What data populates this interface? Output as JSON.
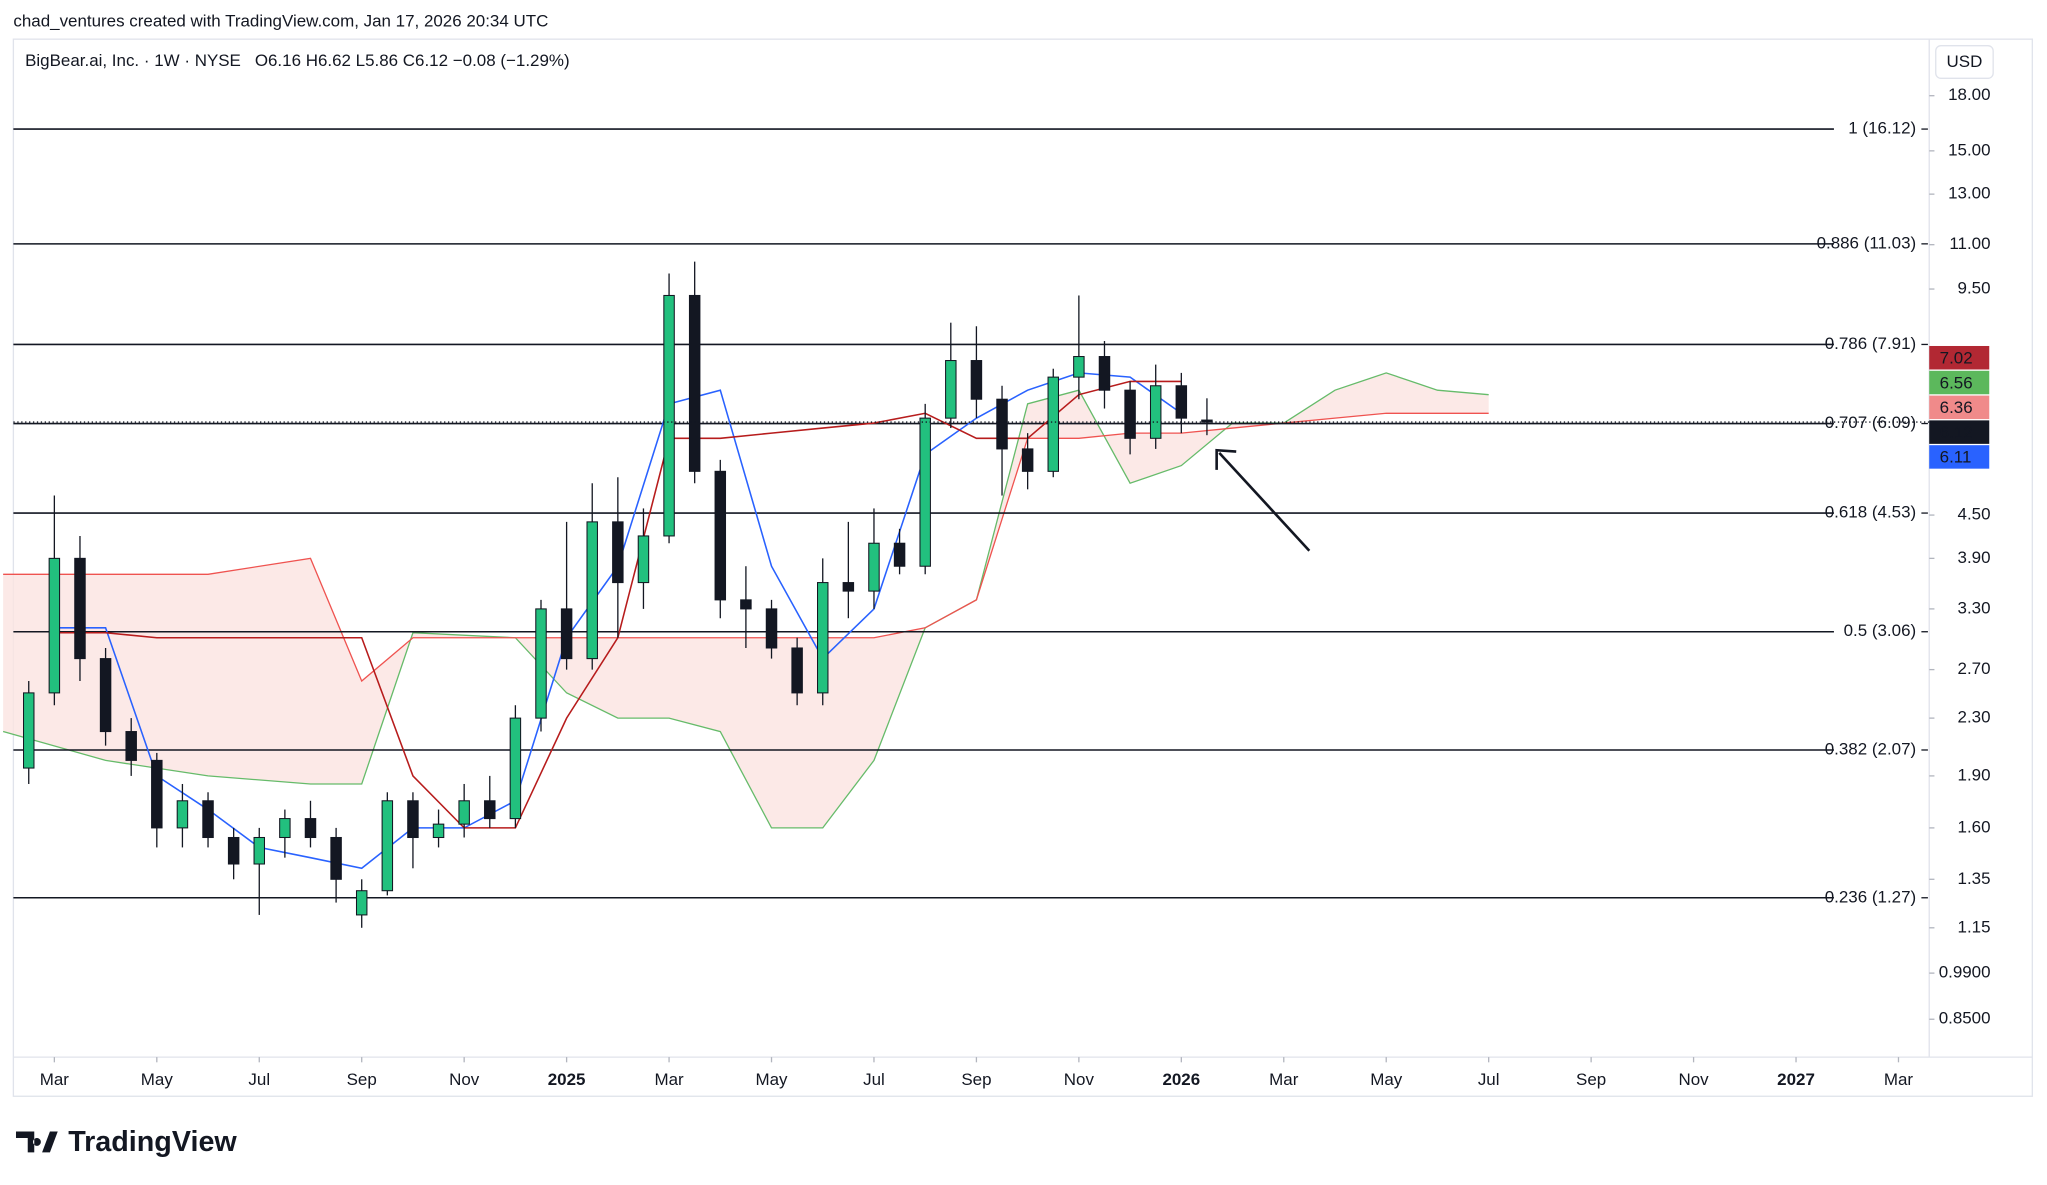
{
  "header": {
    "attribution": "chad_ventures created with TradingView.com, Jan 17, 2026 20:34 UTC",
    "brand": "TradingView"
  },
  "chart_data": {
    "type": "candlestick",
    "title": "BigBear.ai, Inc. · 1W · NYSE",
    "ohlc_text": "O6.16  H6.62  L5.86  C6.12  −0.08 (−1.29%)",
    "currency": "USD",
    "log_scale": true,
    "up_color": "#22c07e",
    "down_color": "#131722",
    "x": [
      1.5,
      2,
      2.5,
      3,
      3.5,
      4,
      4.5,
      5,
      5.5,
      6,
      6.5,
      7,
      7.5,
      8,
      8.5,
      9,
      9.5,
      10,
      10.5,
      11,
      11.5,
      12,
      12.5,
      13,
      13.5,
      14,
      14.5,
      15,
      15.5,
      16,
      16.5,
      17,
      17.5,
      18,
      18.5,
      19,
      19.5,
      20,
      20.5,
      21,
      21.5,
      22,
      22.5,
      23,
      23.5,
      24,
      24.5
    ],
    "open": [
      1.95,
      2.5,
      3.9,
      2.8,
      2.2,
      2.0,
      1.6,
      1.75,
      1.55,
      1.42,
      1.55,
      1.65,
      1.55,
      1.2,
      1.3,
      1.75,
      1.55,
      1.62,
      1.75,
      1.65,
      2.3,
      3.3,
      2.8,
      4.4,
      3.6,
      4.2,
      9.3,
      5.2,
      3.4,
      3.3,
      2.9,
      2.5,
      3.6,
      3.5,
      4.1,
      3.8,
      6.2,
      7.5,
      6.6,
      5.6,
      5.2,
      7.1,
      7.6,
      6.8,
      5.8,
      6.9,
      6.16
    ],
    "high": [
      2.6,
      4.8,
      4.2,
      2.9,
      2.3,
      2.05,
      1.85,
      1.8,
      1.6,
      1.6,
      1.7,
      1.75,
      1.6,
      1.35,
      1.8,
      1.8,
      1.7,
      1.85,
      1.9,
      2.4,
      3.4,
      4.4,
      5.0,
      5.1,
      4.6,
      10.0,
      10.4,
      5.4,
      3.8,
      3.4,
      3.0,
      3.9,
      4.4,
      4.6,
      4.3,
      6.5,
      8.5,
      8.4,
      6.9,
      5.9,
      7.3,
      9.3,
      8.0,
      7.0,
      7.4,
      7.2,
      6.62
    ],
    "low": [
      1.85,
      2.4,
      2.6,
      2.1,
      1.9,
      1.5,
      1.5,
      1.5,
      1.35,
      1.2,
      1.45,
      1.5,
      1.25,
      1.15,
      1.28,
      1.4,
      1.5,
      1.55,
      1.6,
      1.6,
      2.2,
      2.7,
      2.7,
      3.0,
      3.3,
      4.1,
      5.0,
      3.2,
      2.9,
      2.8,
      2.4,
      2.4,
      3.2,
      3.3,
      3.7,
      3.7,
      6.0,
      6.2,
      4.8,
      4.9,
      5.1,
      6.6,
      6.4,
      5.5,
      5.6,
      5.9,
      5.86
    ],
    "close": [
      2.5,
      3.9,
      2.8,
      2.2,
      2.0,
      1.6,
      1.75,
      1.55,
      1.42,
      1.55,
      1.65,
      1.55,
      1.35,
      1.3,
      1.75,
      1.55,
      1.62,
      1.75,
      1.65,
      2.3,
      3.3,
      2.8,
      4.4,
      3.6,
      4.2,
      9.3,
      5.2,
      3.4,
      3.3,
      2.9,
      2.5,
      3.6,
      3.5,
      4.1,
      3.8,
      6.2,
      7.5,
      6.6,
      5.6,
      5.2,
      7.1,
      7.6,
      6.8,
      5.8,
      6.9,
      6.2,
      6.12
    ],
    "lines": [
      {
        "color": "#2962ff",
        "x": [
          2,
          3,
          4,
          5,
          6,
          7,
          8,
          9,
          10,
          11,
          12,
          13,
          14,
          15,
          16,
          17,
          18,
          19,
          20,
          21,
          22,
          23,
          24
        ],
        "values": [
          3.1,
          3.1,
          1.9,
          1.7,
          1.5,
          1.45,
          1.4,
          1.6,
          1.6,
          1.75,
          3.0,
          3.8,
          6.5,
          6.8,
          3.8,
          2.8,
          3.3,
          5.5,
          6.2,
          6.8,
          7.2,
          7.1,
          6.3
        ]
      },
      {
        "color": "#b71c1c",
        "x": [
          2,
          3,
          4,
          5,
          6,
          7,
          8,
          9,
          10,
          11,
          12,
          13,
          14,
          15,
          16,
          17,
          18,
          19,
          20,
          21,
          22,
          23,
          24
        ],
        "values": [
          3.05,
          3.05,
          3.0,
          3.0,
          3.0,
          3.0,
          3.0,
          1.9,
          1.6,
          1.6,
          2.3,
          3.0,
          5.8,
          5.8,
          5.9,
          6.0,
          6.1,
          6.3,
          5.8,
          5.8,
          6.7,
          7.0,
          7.0
        ]
      }
    ],
    "cloud": {
      "span_a_color": "#66bb6a",
      "span_b_color": "#ef5350",
      "fill": "#fbe3e1",
      "x": [
        1,
        3,
        5,
        7,
        8,
        9,
        11,
        12,
        13,
        14,
        15,
        16,
        17,
        18,
        19,
        20,
        21,
        22,
        23,
        24,
        25,
        26,
        27,
        28,
        29,
        30
      ],
      "span_a": [
        2.2,
        2.0,
        1.9,
        1.85,
        1.85,
        3.05,
        3.0,
        2.5,
        2.3,
        2.3,
        2.2,
        1.6,
        1.6,
        2.0,
        3.1,
        3.4,
        6.5,
        6.8,
        5.0,
        5.3,
        6.1,
        6.1,
        6.8,
        7.2,
        6.8,
        6.7
      ],
      "span_b": [
        3.7,
        3.7,
        3.7,
        3.9,
        2.6,
        3.0,
        3.0,
        3.0,
        3.0,
        3.0,
        3.0,
        3.0,
        3.0,
        3.0,
        3.1,
        3.4,
        5.8,
        5.8,
        5.9,
        5.9,
        6.0,
        6.1,
        6.2,
        6.3,
        6.3,
        6.3
      ]
    },
    "levels": [
      {
        "value": 16.12,
        "label": "1 (16.12)"
      },
      {
        "value": 11.03,
        "label": "0.886 (11.03)"
      },
      {
        "value": 7.91,
        "label": "0.786 (7.91)"
      },
      {
        "value": 6.09,
        "label": "0.707 (6.09)"
      },
      {
        "value": 4.53,
        "label": "0.618 (4.53)"
      },
      {
        "value": 3.06,
        "label": "0.5 (3.06)"
      },
      {
        "value": 2.07,
        "label": "0.382 (2.07)"
      },
      {
        "value": 1.27,
        "label": "0.236 (1.27)"
      }
    ],
    "price_badges": [
      {
        "value": 7.02,
        "color": "#b22833"
      },
      {
        "value": 6.56,
        "color": "#5cb85c"
      },
      {
        "value": 6.36,
        "color": "#f08a8a"
      },
      {
        "value": 6.12,
        "color": "#131722"
      },
      {
        "value": 6.11,
        "color": "#2962ff"
      }
    ],
    "xlim": [
      1.2,
      38.6
    ],
    "xticks": [
      {
        "value": 2,
        "label": "Mar"
      },
      {
        "value": 4,
        "label": "May"
      },
      {
        "value": 6,
        "label": "Jul"
      },
      {
        "value": 8,
        "label": "Sep"
      },
      {
        "value": 10,
        "label": "Nov"
      },
      {
        "value": 12,
        "label": "2025"
      },
      {
        "value": 14,
        "label": "Mar"
      },
      {
        "value": 16,
        "label": "May"
      },
      {
        "value": 18,
        "label": "Jul"
      },
      {
        "value": 20,
        "label": "Sep"
      },
      {
        "value": 22,
        "label": "Nov"
      },
      {
        "value": 24,
        "label": "2026"
      },
      {
        "value": 26,
        "label": "Mar"
      },
      {
        "value": 28,
        "label": "May"
      },
      {
        "value": 30,
        "label": "Jul"
      },
      {
        "value": 32,
        "label": "Sep"
      },
      {
        "value": 34,
        "label": "Nov"
      },
      {
        "value": 36,
        "label": "2027"
      },
      {
        "value": 38,
        "label": "Mar"
      }
    ],
    "ylim": [
      0.75,
      21.7
    ],
    "yticks": [
      {
        "value": 18,
        "label": "18.00"
      },
      {
        "value": 15,
        "label": "15.00"
      },
      {
        "value": 13,
        "label": "13.00"
      },
      {
        "value": 11,
        "label": "11.00"
      },
      {
        "value": 9.5,
        "label": "9.50"
      },
      {
        "value": 4.5,
        "label": "4.50"
      },
      {
        "value": 3.9,
        "label": "3.90"
      },
      {
        "value": 3.3,
        "label": "3.30"
      },
      {
        "value": 2.7,
        "label": "2.70"
      },
      {
        "value": 2.3,
        "label": "2.30"
      },
      {
        "value": 1.9,
        "label": "1.90"
      },
      {
        "value": 1.6,
        "label": "1.60"
      },
      {
        "value": 1.35,
        "label": "1.35"
      },
      {
        "value": 1.15,
        "label": "1.15"
      },
      {
        "value": 0.99,
        "label": "0.9900"
      },
      {
        "value": 0.85,
        "label": "0.8500"
      }
    ]
  }
}
